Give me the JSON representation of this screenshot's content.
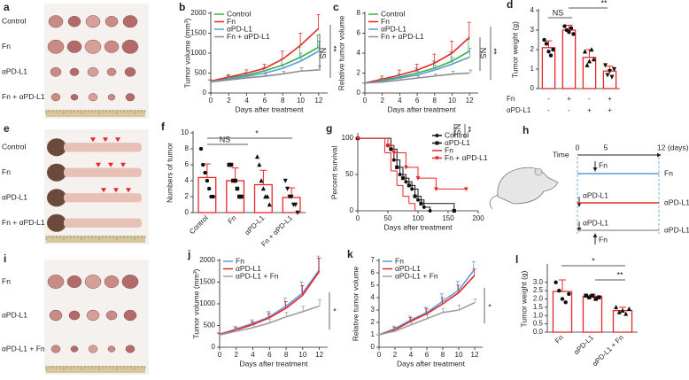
{
  "chart_data": [
    {
      "type": "line",
      "panel": "b",
      "ylabel": "Tumor volume (mm³)",
      "xlabel": "Days after treatment",
      "x": [
        0,
        2,
        4,
        6,
        8,
        10,
        12
      ],
      "xlim": [
        0,
        13
      ],
      "xticks": [
        0,
        2,
        4,
        6,
        8,
        10,
        12
      ],
      "ylim": [
        0,
        2000
      ],
      "yticks": [
        0,
        500,
        1000,
        1500,
        2000
      ],
      "legend": "upper left",
      "series": [
        {
          "name": "Control",
          "color": "#3cb043",
          "values": [
            300,
            380,
            450,
            560,
            700,
            900,
            1150
          ],
          "errors": [
            30,
            50,
            60,
            80,
            150,
            250,
            300
          ]
        },
        {
          "name": "Fn",
          "color": "#e8262a",
          "values": [
            300,
            400,
            500,
            620,
            850,
            1200,
            1620
          ],
          "errors": [
            30,
            60,
            80,
            100,
            200,
            300,
            350
          ]
        },
        {
          "name": "αPD-L1",
          "color": "#5b9bd5",
          "values": [
            290,
            350,
            420,
            500,
            620,
            800,
            1050
          ],
          "errors": [
            20,
            40,
            50,
            60,
            100,
            200,
            250
          ]
        },
        {
          "name": "Fn + αPD-L1",
          "color": "#8c8c8c",
          "values": [
            280,
            330,
            380,
            420,
            480,
            550,
            580
          ],
          "errors": [
            20,
            30,
            40,
            50,
            60,
            80,
            100
          ]
        }
      ],
      "annotations": [
        "NS",
        "**"
      ]
    },
    {
      "type": "line",
      "panel": "c",
      "ylabel": "Relative tumor volume",
      "xlabel": "Days after treatment",
      "x": [
        0,
        2,
        4,
        6,
        8,
        10,
        12
      ],
      "xlim": [
        0,
        13
      ],
      "xticks": [
        0,
        2,
        4,
        6,
        8,
        10,
        12
      ],
      "ylim": [
        0,
        8
      ],
      "yticks": [
        0,
        2,
        4,
        6,
        8
      ],
      "legend": "upper left",
      "series": [
        {
          "name": "Control",
          "color": "#3cb043",
          "values": [
            1,
            1.3,
            1.6,
            2,
            2.5,
            3.2,
            4.2
          ],
          "errors": [
            0,
            0.2,
            0.3,
            0.5,
            0.7,
            0.9,
            1.2
          ]
        },
        {
          "name": "Fn",
          "color": "#e8262a",
          "values": [
            1,
            1.4,
            1.8,
            2.3,
            3,
            4,
            5.6
          ],
          "errors": [
            0,
            0.3,
            0.5,
            0.6,
            0.9,
            1.2,
            1.5
          ]
        },
        {
          "name": "αPD-L1",
          "color": "#5b9bd5",
          "values": [
            1,
            1.2,
            1.5,
            1.8,
            2.3,
            2.9,
            3.6
          ],
          "errors": [
            0,
            0.2,
            0.3,
            0.4,
            0.5,
            0.7,
            0.9
          ]
        },
        {
          "name": "Fn + αPD-L1",
          "color": "#8c8c8c",
          "values": [
            1,
            1.1,
            1.3,
            1.5,
            1.7,
            1.9,
            2.0
          ],
          "errors": [
            0,
            0.1,
            0.2,
            0.2,
            0.2,
            0.3,
            0.3
          ]
        }
      ],
      "annotations": [
        "NS",
        "**"
      ]
    },
    {
      "type": "bar",
      "panel": "d",
      "ylabel": "Tumor weight (g)",
      "categories": [
        null,
        null,
        null,
        null
      ],
      "values": [
        2.1,
        3.0,
        1.6,
        0.9
      ],
      "errors": [
        0.35,
        0.25,
        0.4,
        0.25
      ],
      "color": "#e8262a",
      "points": [
        [
          2.5,
          2.3,
          1.9,
          1.7,
          2.0
        ],
        [
          3.2,
          3.0,
          2.9,
          3.1,
          2.8
        ],
        [
          1.9,
          1.2,
          1.4,
          2.0,
          1.5
        ],
        [
          1.2,
          0.7,
          0.9,
          0.6,
          1.0
        ]
      ],
      "markers": [
        "circle",
        "circle",
        "triangle",
        "triangle-down"
      ],
      "ylim": [
        0,
        4
      ],
      "yticks": [
        0,
        1,
        2,
        3,
        4
      ],
      "groups": [
        {
          "name": "Fn",
          "labels": [
            "-",
            "+",
            "-",
            "+"
          ]
        },
        {
          "name": "αPD-L1",
          "labels": [
            "-",
            "-",
            "+",
            "+"
          ]
        }
      ],
      "annotations": [
        "NS",
        "**"
      ]
    },
    {
      "type": "bar",
      "panel": "f",
      "ylabel": "Numbers of tumor",
      "categories": [
        "Control",
        "Fn",
        "αPD-L1",
        "Fn + αPD-L1"
      ],
      "xtick_rotation": 45,
      "values": [
        4.4,
        4,
        3.5,
        1.9
      ],
      "errors": [
        1.7,
        1.6,
        1.8,
        1.2
      ],
      "color": "#e8262a",
      "points": [
        [
          8,
          6,
          5,
          4,
          3,
          2,
          2
        ],
        [
          6,
          6,
          4,
          4,
          3,
          2,
          2
        ],
        [
          7,
          6,
          4,
          3,
          2,
          2,
          1
        ],
        [
          4,
          3,
          2,
          2,
          1,
          1,
          0
        ]
      ],
      "markers": [
        "circle",
        "square",
        "triangle",
        "triangle-down"
      ],
      "ylim": [
        0,
        10
      ],
      "yticks": [
        0,
        2,
        4,
        6,
        8,
        10
      ],
      "annotations": [
        "NS",
        "*"
      ]
    },
    {
      "type": "line",
      "step": true,
      "panel": "g",
      "ylabel": "Percent survival",
      "xlabel": "Days after treatment",
      "xlim": [
        0,
        200
      ],
      "xticks": [
        0,
        50,
        100,
        150,
        200
      ],
      "ylim": [
        0,
        105
      ],
      "yticks": [
        0,
        50,
        100
      ],
      "legend": "upper right",
      "series": [
        {
          "name": "Control",
          "color": "#111111",
          "marker": "circle",
          "x": [
            0,
            50,
            60,
            70,
            80,
            90,
            100,
            110,
            120
          ],
          "values": [
            100,
            90,
            70,
            50,
            40,
            30,
            15,
            5,
            0
          ]
        },
        {
          "name": "αPD-L1",
          "color": "#111111",
          "marker": "square",
          "x": [
            0,
            55,
            65,
            75,
            85,
            95,
            105,
            160
          ],
          "values": [
            100,
            85,
            60,
            45,
            35,
            20,
            10,
            0
          ]
        },
        {
          "name": "Fn",
          "color": "#e8262a",
          "marker": "none",
          "x": [
            0,
            45,
            55,
            65,
            75,
            85,
            95
          ],
          "values": [
            100,
            80,
            55,
            35,
            20,
            10,
            0
          ]
        },
        {
          "name": "Fn + αPD-L1",
          "color": "#e8262a",
          "marker": "triangle-down",
          "x": [
            0,
            50,
            60,
            80,
            100,
            130,
            180
          ],
          "values": [
            100,
            90,
            80,
            60,
            45,
            30,
            30
          ]
        }
      ],
      "annotations": [
        "NS",
        "**"
      ]
    },
    {
      "type": "line",
      "panel": "j",
      "ylabel": "Tumor volume (mm³)",
      "xlabel": "Days after treatment",
      "x": [
        0,
        2,
        4,
        6,
        8,
        10,
        12
      ],
      "xlim": [
        0,
        13
      ],
      "xticks": [
        0,
        2,
        4,
        6,
        8,
        10,
        12
      ],
      "ylim": [
        0,
        2000
      ],
      "yticks": [
        0,
        500,
        1000,
        1500,
        2000
      ],
      "legend": "upper left",
      "series": [
        {
          "name": "Fn",
          "color": "#5b9bd5",
          "values": [
            300,
            420,
            550,
            700,
            950,
            1250,
            1780
          ],
          "errors": [
            30,
            60,
            80,
            120,
            180,
            250,
            320
          ]
        },
        {
          "name": "αPD-L1",
          "color": "#e8262a",
          "values": [
            290,
            400,
            520,
            680,
            900,
            1200,
            1750
          ],
          "errors": [
            30,
            50,
            70,
            100,
            150,
            220,
            300
          ]
        },
        {
          "name": "αPD-L1 + Fn",
          "color": "#a0a0a0",
          "values": [
            280,
            370,
            450,
            560,
            700,
            820,
            950
          ],
          "errors": [
            20,
            40,
            60,
            80,
            100,
            120,
            150
          ]
        }
      ],
      "annotations": [
        "*"
      ]
    },
    {
      "type": "line",
      "panel": "k",
      "ylabel": "Relative tumor volume",
      "xlabel": "Days after treatment",
      "x": [
        0,
        2,
        4,
        6,
        8,
        10,
        12
      ],
      "xlim": [
        0,
        13
      ],
      "xticks": [
        0,
        2,
        4,
        6,
        8,
        10,
        12
      ],
      "ylim": [
        0,
        7
      ],
      "yticks": [
        0,
        1,
        2,
        3,
        4,
        5,
        6,
        7
      ],
      "legend": "upper left",
      "series": [
        {
          "name": "Fn",
          "color": "#5b9bd5",
          "values": [
            1,
            1.5,
            2.2,
            2.8,
            3.7,
            4.6,
            6.3
          ],
          "errors": [
            0,
            0.2,
            0.3,
            0.4,
            0.6,
            0.7,
            0.6
          ]
        },
        {
          "name": "αPD-L1",
          "color": "#e8262a",
          "values": [
            1,
            1.4,
            2.1,
            2.7,
            3.5,
            4.4,
            5.8
          ],
          "errors": [
            0,
            0.2,
            0.3,
            0.4,
            0.5,
            0.6,
            0.5
          ]
        },
        {
          "name": "αPD-L1 + Fn",
          "color": "#a0a0a0",
          "values": [
            1,
            1.3,
            1.8,
            2.3,
            2.8,
            3.0,
            3.6
          ],
          "errors": [
            0,
            0.2,
            0.2,
            0.3,
            0.3,
            0.4,
            0.3
          ]
        }
      ],
      "annotations": [
        "*"
      ]
    },
    {
      "type": "bar",
      "panel": "l",
      "ylabel": "Tumor weight (g)",
      "categories": [
        "Fn",
        "αPD-L1",
        "αPD-L1 + Fn"
      ],
      "xtick_rotation": 45,
      "values": [
        2.45,
        2.15,
        1.3
      ],
      "errors": [
        0.7,
        0.1,
        0.2
      ],
      "color": "#e8262a",
      "points": [
        [
          3.0,
          2.5,
          2.0,
          1.8,
          2.3
        ],
        [
          2.2,
          2.1,
          2.2,
          2.0,
          2.1
        ],
        [
          1.5,
          1.2,
          1.3,
          1.1,
          1.4
        ]
      ],
      "markers": [
        "circle",
        "square",
        "triangle"
      ],
      "ylim": [
        0,
        4
      ],
      "yticks": [
        {
          "value": 0,
          "label": "0.0"
        },
        0.5,
        {
          "value": 1,
          "label": "1.0"
        },
        1.5,
        {
          "value": 2,
          "label": "2.0"
        },
        2.5,
        {
          "value": 3,
          "label": "3.0"
        }
      ],
      "annotations": [
        "*",
        "**"
      ]
    }
  ],
  "photos": {
    "a": {
      "letter": "a",
      "labels": [
        "Control",
        "Fn",
        "αPD-L1",
        "Fn + αPD-L1"
      ]
    },
    "e": {
      "letter": "e",
      "labels": [
        "Control",
        "Fn",
        "αPD-L1",
        "Fn + αPD-L1"
      ]
    },
    "i": {
      "letter": "i",
      "labels": [
        "Fn",
        "αPD-L1",
        "αPD-L1 + Fn"
      ]
    }
  },
  "diagram": {
    "letter": "h",
    "time": "Time",
    "start": "0",
    "mid": "5",
    "end": "12 (days)",
    "arrow1": "Fn",
    "line1": "Fn",
    "left2": "αPD-L1",
    "line2": "αPD-L1",
    "left3": "αPD-L1",
    "arrow3": "Fn",
    "line3": "αPD-L1 + Fn"
  }
}
